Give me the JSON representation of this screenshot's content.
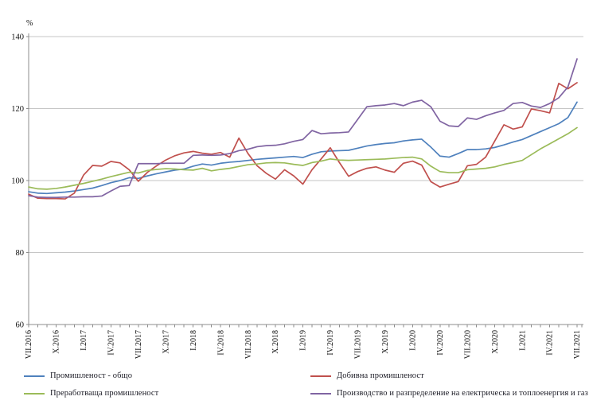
{
  "chart_data": {
    "type": "line",
    "title": "",
    "ylabel": "%",
    "ylim": [
      60,
      140
    ],
    "yticks": [
      60,
      80,
      100,
      120,
      140
    ],
    "grid": true,
    "legend_position": "bottom",
    "x_label_every": 3,
    "x_tick_labels": [
      "VII.2016",
      "X.2016",
      "I.2017",
      "IV.2017",
      "VII.2017",
      "X.2017",
      "I.2018",
      "IV.2018",
      "VII.2018",
      "X.2018",
      "I.2019",
      "IV.2019",
      "VII.2019",
      "X.2019",
      "I.2020",
      "IV.2020",
      "VII.2020",
      "X.2020",
      "I.2021",
      "IV.2021",
      "VII.2021"
    ],
    "series": [
      {
        "name": "Промишленост - общо",
        "color": "#4f81bd",
        "values": [
          96.9,
          96.5,
          96.4,
          96.6,
          96.8,
          97.1,
          97.5,
          97.9,
          98.6,
          99.4,
          100.0,
          100.8,
          100.6,
          101.3,
          101.9,
          102.4,
          102.9,
          103.2,
          104.0,
          104.6,
          104.3,
          104.8,
          105.1,
          105.3,
          105.6,
          105.9,
          106.1,
          106.3,
          106.5,
          106.7,
          106.4,
          107.3,
          108.0,
          108.2,
          108.3,
          108.4,
          109.0,
          109.6,
          110.0,
          110.3,
          110.5,
          111.0,
          111.3,
          111.5,
          109.3,
          106.8,
          106.5,
          107.5,
          108.6,
          108.6,
          108.8,
          109.2,
          109.9,
          110.7,
          111.4,
          112.5,
          113.6,
          114.7,
          115.8,
          117.5,
          121.8
        ]
      },
      {
        "name": "Добивна промишленост",
        "color": "#c0504d",
        "values": [
          96.2,
          95.1,
          95.0,
          95.0,
          94.9,
          96.5,
          101.5,
          104.2,
          104.0,
          105.3,
          104.9,
          103.0,
          99.8,
          102.3,
          104.1,
          105.7,
          106.9,
          107.7,
          108.1,
          107.6,
          107.3,
          107.8,
          106.5,
          111.8,
          107.5,
          104.1,
          102.0,
          100.4,
          103.0,
          101.3,
          99.0,
          103.0,
          106.0,
          109.1,
          105.0,
          101.2,
          102.5,
          103.4,
          103.8,
          102.9,
          102.3,
          104.8,
          105.4,
          104.3,
          99.7,
          98.2,
          99.0,
          99.7,
          104.1,
          104.5,
          106.5,
          111.0,
          115.5,
          114.3,
          114.9,
          119.9,
          119.4,
          118.8,
          127.0,
          125.5,
          127.2
        ]
      },
      {
        "name": "Преработваща промишленост",
        "color": "#9bbb59",
        "values": [
          98.2,
          97.7,
          97.6,
          97.8,
          98.2,
          98.7,
          99.2,
          99.8,
          100.4,
          101.1,
          101.7,
          102.3,
          102.1,
          102.8,
          103.1,
          103.3,
          103.2,
          103.0,
          102.9,
          103.4,
          102.7,
          103.1,
          103.4,
          103.9,
          104.4,
          104.6,
          104.9,
          105.0,
          104.9,
          104.5,
          104.2,
          105.0,
          105.4,
          106.0,
          105.7,
          105.6,
          105.7,
          105.8,
          105.9,
          106.0,
          106.2,
          106.4,
          106.5,
          106.0,
          104.0,
          102.5,
          102.2,
          102.2,
          103.0,
          103.2,
          103.4,
          103.8,
          104.5,
          105.0,
          105.6,
          107.2,
          108.8,
          110.2,
          111.6,
          113.0,
          114.7
        ]
      },
      {
        "name": "Производство и разпределение на електрическа и топлоенергия и газ",
        "color": "#8064a2",
        "values": [
          95.8,
          95.4,
          95.3,
          95.3,
          95.4,
          95.4,
          95.5,
          95.5,
          95.7,
          97.1,
          98.4,
          98.6,
          104.7,
          104.7,
          104.7,
          104.8,
          104.8,
          104.8,
          107.0,
          107.1,
          107.0,
          107.1,
          107.5,
          108.3,
          108.7,
          109.4,
          109.7,
          109.8,
          110.2,
          110.9,
          111.4,
          113.9,
          113.0,
          113.2,
          113.3,
          113.5,
          117.0,
          120.5,
          120.8,
          121.0,
          121.4,
          120.8,
          121.8,
          122.3,
          120.5,
          116.5,
          115.2,
          115.0,
          117.4,
          117.0,
          118.0,
          118.8,
          119.5,
          121.4,
          121.7,
          120.7,
          120.3,
          121.4,
          123.0,
          126.0,
          133.8
        ]
      }
    ]
  },
  "colors": {
    "gridline": "#c6c6c6",
    "axis": "#8c8c8c",
    "tick_text": "#111111",
    "background": "#ffffff"
  }
}
